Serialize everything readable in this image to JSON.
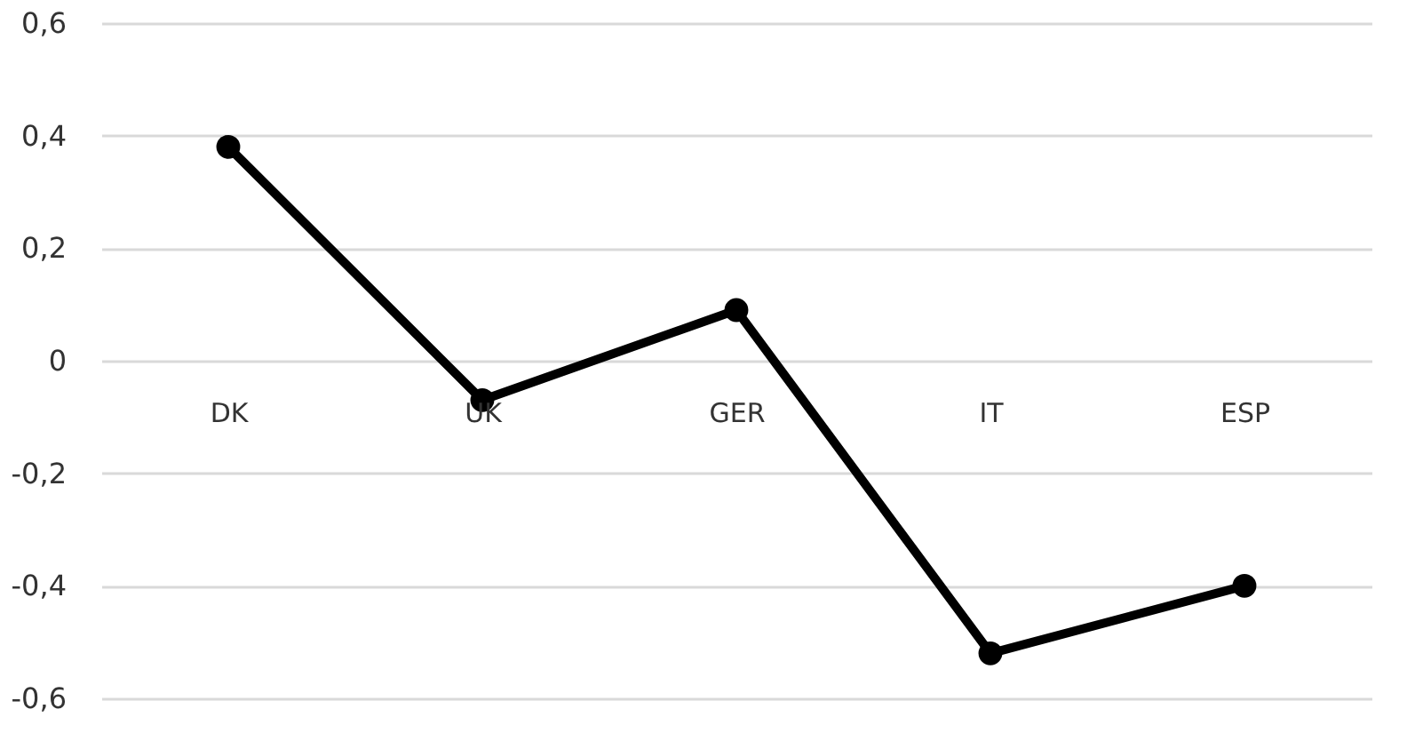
{
  "chart_data": {
    "type": "line",
    "categories": [
      "DK",
      "UK",
      "GER",
      "IT",
      "ESP"
    ],
    "series": [
      {
        "color": "#000000",
        "values": [
          0.38,
          -0.07,
          0.09,
          -0.52,
          -0.4
        ]
      }
    ],
    "ylim": [
      -0.6,
      0.6
    ],
    "yticks": [
      {
        "value": -0.6,
        "label": "-0,6"
      },
      {
        "value": -0.4,
        "label": "-0,4"
      },
      {
        "value": -0.2,
        "label": "-0,2"
      },
      {
        "value": 0,
        "label": "0"
      },
      {
        "value": 0.2,
        "label": "0,2"
      },
      {
        "value": 0.4,
        "label": "0,4"
      },
      {
        "value": 0.6,
        "label": "0,6"
      }
    ],
    "grid": "y",
    "marker": "circle",
    "line_style": "solid"
  }
}
